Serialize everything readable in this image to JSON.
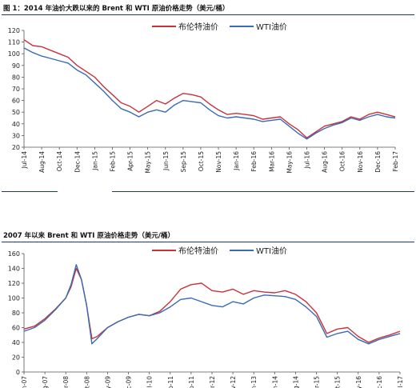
{
  "figure1": {
    "title": "图 1：2014 年油价大跌以来的 Brent 和 WTI 原油价格走势（美元/桶）"
  },
  "figure2": {
    "title": "2007 年以来 Brent 和 WTI 原油价格走势（美元/桶）"
  },
  "chart_data": [
    {
      "type": "line",
      "title": "",
      "ylim": [
        20,
        120
      ],
      "yticks": [
        20,
        30,
        40,
        50,
        60,
        70,
        80,
        90,
        100,
        110,
        120
      ],
      "grid": false,
      "legend": "top-center",
      "categories": [
        "Jul-14",
        "Aug-14",
        "Oct-14",
        "Dec-14",
        "Jan-15",
        "Feb-15",
        "Apr-15",
        "May-15",
        "Jun-15",
        "Sep-15",
        "Oct-15",
        "Nov-15",
        "Jan-16",
        "Feb-16",
        "Mar-16",
        "May-16",
        "Jul-16",
        "Aug-16",
        "Oct-16",
        "Nov-16",
        "Dec-16",
        "Feb-17"
      ],
      "series": [
        {
          "name": "布伦特油价",
          "color": "#c8323c",
          "x": [
            0,
            0.5,
            1,
            1.5,
            2,
            2.5,
            3,
            3.5,
            4,
            4.5,
            5,
            5.5,
            6,
            6.5,
            7,
            7.5,
            8,
            8.5,
            9,
            9.5,
            10,
            10.5,
            11,
            11.5,
            12,
            12.5,
            13,
            13.5,
            14,
            14.5,
            15,
            15.5,
            16,
            16.5,
            17,
            17.5,
            18,
            18.5,
            19,
            19.5,
            20,
            20.5,
            21
          ],
          "values": [
            112,
            107,
            106,
            103,
            100,
            97,
            90,
            85,
            80,
            72,
            65,
            58,
            55,
            50,
            55,
            60,
            57,
            62,
            66,
            65,
            63,
            57,
            52,
            48,
            49,
            48,
            47,
            44,
            45,
            46,
            40,
            35,
            28,
            33,
            38,
            40,
            42,
            46,
            44,
            48,
            50,
            48,
            46
          ]
        },
        {
          "name": "WTI油价",
          "color": "#3a6bb3",
          "x": [
            0,
            0.5,
            1,
            1.5,
            2,
            2.5,
            3,
            3.5,
            4,
            4.5,
            5,
            5.5,
            6,
            6.5,
            7,
            7.5,
            8,
            8.5,
            9,
            9.5,
            10,
            10.5,
            11,
            11.5,
            12,
            12.5,
            13,
            13.5,
            14,
            14.5,
            15,
            15.5,
            16,
            16.5,
            17,
            17.5,
            18,
            18.5,
            19,
            19.5,
            20,
            20.5,
            21
          ],
          "values": [
            105,
            101,
            98,
            96,
            94,
            92,
            86,
            82,
            75,
            68,
            60,
            53,
            50,
            46,
            50,
            52,
            50,
            56,
            60,
            59,
            58,
            52,
            47,
            45,
            46,
            45,
            44,
            42,
            43,
            44,
            38,
            32,
            27,
            32,
            36,
            39,
            41,
            45,
            43,
            46,
            48,
            46,
            45
          ]
        }
      ]
    },
    {
      "type": "line",
      "title": "",
      "ylim": [
        0,
        160
      ],
      "yticks": [
        0,
        20,
        40,
        60,
        80,
        100,
        120,
        140,
        160
      ],
      "grid": false,
      "legend": "top-center",
      "categories": [
        "Jan-07",
        "Aug-07",
        "Mar-08",
        "Oct-08",
        "May-09",
        "Dec-09",
        "Jul-10",
        "Feb-11",
        "Sep-11",
        "Apr-12",
        "Nov-12",
        "Jun-13",
        "Jan-14",
        "Aug-14",
        "Mar-15",
        "Oct-15",
        "May-16",
        "Dec-16",
        "Jul-17"
      ],
      "series": [
        {
          "name": "布伦特油价",
          "color": "#c8323c",
          "x": [
            0,
            0.5,
            1,
            1.5,
            2,
            2.25,
            2.5,
            2.75,
            3,
            3.25,
            3.5,
            4,
            4.5,
            5,
            5.5,
            6,
            6.5,
            7,
            7.5,
            8,
            8.5,
            9,
            9.5,
            10,
            10.5,
            11,
            11.5,
            12,
            12.5,
            13,
            13.5,
            14,
            14.5,
            15,
            15.5,
            16,
            16.5,
            17,
            17.5,
            18
          ],
          "values": [
            58,
            62,
            72,
            85,
            100,
            115,
            140,
            125,
            90,
            45,
            48,
            60,
            68,
            74,
            78,
            76,
            82,
            95,
            112,
            118,
            120,
            110,
            108,
            112,
            105,
            110,
            108,
            107,
            110,
            105,
            95,
            80,
            52,
            58,
            60,
            48,
            40,
            46,
            50,
            55
          ]
        },
        {
          "name": "WTI油价",
          "color": "#3a6bb3",
          "x": [
            0,
            0.5,
            1,
            1.5,
            2,
            2.25,
            2.5,
            2.75,
            3,
            3.25,
            3.5,
            4,
            4.5,
            5,
            5.5,
            6,
            6.5,
            7,
            7.5,
            8,
            8.5,
            9,
            9.5,
            10,
            10.5,
            11,
            11.5,
            12,
            12.5,
            13,
            13.5,
            14,
            14.5,
            15,
            15.5,
            16,
            16.5,
            17,
            17.5,
            18
          ],
          "values": [
            55,
            60,
            70,
            84,
            100,
            118,
            145,
            125,
            90,
            38,
            45,
            60,
            68,
            74,
            78,
            76,
            80,
            88,
            98,
            100,
            95,
            90,
            88,
            95,
            92,
            100,
            104,
            103,
            102,
            98,
            88,
            75,
            47,
            52,
            55,
            44,
            38,
            44,
            48,
            52
          ]
        }
      ]
    }
  ]
}
